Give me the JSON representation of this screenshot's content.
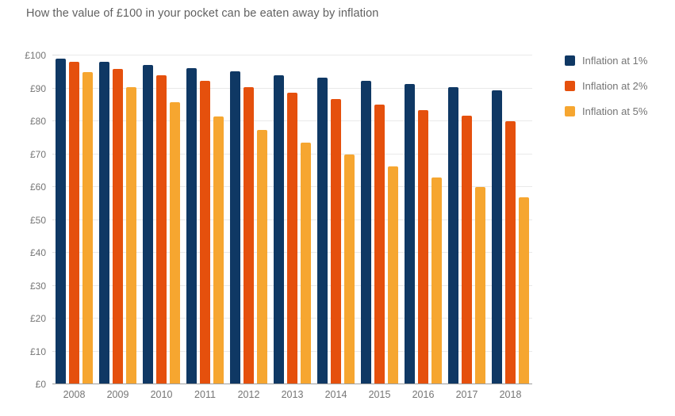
{
  "title": "How the value of £100 in your pocket can be eaten away by inflation",
  "chart_data": {
    "type": "bar",
    "title": "How the value of £100 in your pocket can be eaten away by inflation",
    "categories": [
      "2008",
      "2009",
      "2010",
      "2011",
      "2012",
      "2013",
      "2014",
      "2015",
      "2016",
      "2017",
      "2018"
    ],
    "series": [
      {
        "name": "Inflation at 1%",
        "color": "#0f3864",
        "values": [
          99.0,
          98.0,
          97.0,
          96.1,
          95.1,
          94.1,
          93.2,
          92.3,
          91.4,
          90.4,
          89.5
        ]
      },
      {
        "name": "Inflation at 2%",
        "color": "#e5500d",
        "values": [
          98.0,
          96.0,
          94.1,
          92.2,
          90.4,
          88.6,
          86.8,
          85.1,
          83.4,
          81.7,
          80.1
        ]
      },
      {
        "name": "Inflation at 5%",
        "color": "#f6a630",
        "values": [
          95.0,
          90.3,
          85.7,
          81.5,
          77.4,
          73.5,
          69.8,
          66.3,
          63.0,
          59.9,
          56.9
        ]
      }
    ],
    "xlabel": "",
    "ylabel": "",
    "ylim": [
      0,
      100
    ],
    "ytick_step": 10,
    "yticks": [
      "£0",
      "£10",
      "£20",
      "£30",
      "£40",
      "£50",
      "£60",
      "£70",
      "£80",
      "£90",
      "£100"
    ],
    "grid": true,
    "legend_position": "right"
  },
  "colors": {
    "title_text": "#616161",
    "axis_text": "#757575",
    "gridline": "#e9e9e9",
    "axis_line": "#9e9e9e",
    "tick": "#dedede",
    "background": "#ffffff"
  }
}
